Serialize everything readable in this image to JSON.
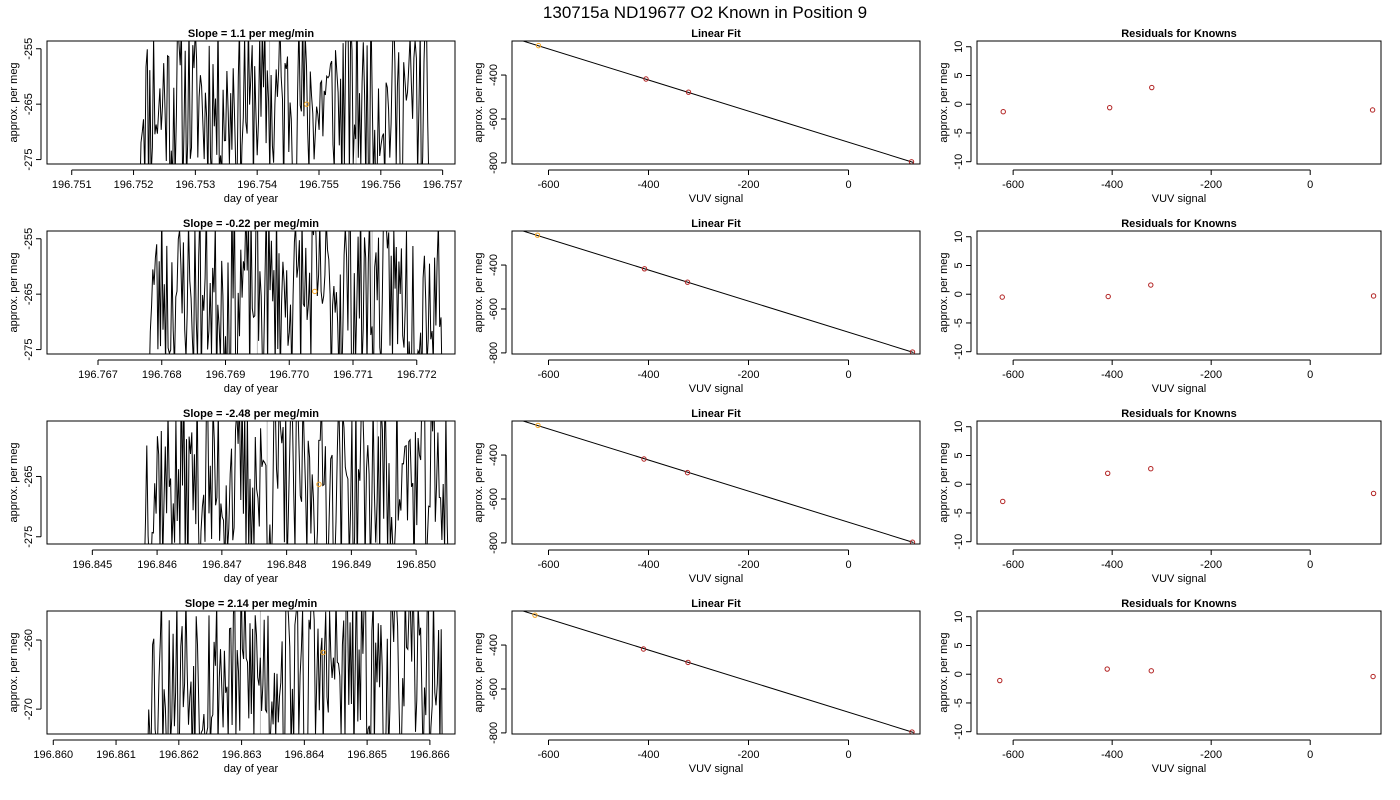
{
  "figure": {
    "title": "130715a     ND19677    O2 Known in Position  9"
  },
  "colors": {
    "trace": "#000000",
    "marker_orange": "#f5a623",
    "marker_red": "#b22222",
    "fit_line": "#000000",
    "gray_line": "#bdbdbd",
    "frame": "#000000"
  },
  "chart_data": [
    {
      "type": "line",
      "title": "Slope =  1.1  per meg/min",
      "xlabel": "day of year",
      "ylabel": "approx. per meg",
      "xlim": [
        196.7506,
        196.7572
      ],
      "ylim": [
        -275.8,
        -253.6
      ],
      "xticks": [
        196.751,
        196.752,
        196.753,
        196.754,
        196.755,
        196.756,
        196.757
      ],
      "xtick_labels": [
        "196.751",
        "196.752",
        "196.753",
        "196.754",
        "196.755",
        "196.756",
        "196.757"
      ],
      "yticks": [
        -275,
        -265,
        -255
      ],
      "ytick_labels": [
        "-275",
        "-265",
        "-255"
      ],
      "trace_x_range": [
        196.7521,
        196.7568
      ],
      "seed": 11,
      "vlines": [
        196.7542,
        196.7556
      ],
      "marker": {
        "x": 196.7548,
        "y": -265.0
      }
    },
    {
      "type": "scatter",
      "title": "Linear Fit",
      "xlabel": "VUV signal",
      "ylabel": "approx. per meg",
      "xlim": [
        -673,
        143
      ],
      "ylim": [
        -805,
        -245
      ],
      "xticks": [
        -600,
        -400,
        -200,
        0
      ],
      "xtick_labels": [
        "-600",
        "-400",
        "-200",
        "0"
      ],
      "yticks": [
        -800,
        -600,
        -400
      ],
      "ytick_labels": [
        "-800",
        "-600",
        "-400"
      ],
      "line": {
        "x": [
          -665,
          130
        ],
        "y": [
          -235,
          -798
        ]
      },
      "points": [
        {
          "x": -620,
          "y": -266,
          "color": "orange"
        },
        {
          "x": -405,
          "y": -418,
          "color": "red"
        },
        {
          "x": -320,
          "y": -478,
          "color": "red"
        },
        {
          "x": 126,
          "y": -795,
          "color": "red"
        }
      ]
    },
    {
      "type": "scatter",
      "title": "Residuals for Knowns",
      "xlabel": "VUV signal",
      "ylabel": "approx. per meg",
      "xlim": [
        -673,
        143
      ],
      "ylim": [
        -10.4,
        11
      ],
      "xticks": [
        -600,
        -400,
        -200,
        0
      ],
      "xtick_labels": [
        "-600",
        "-400",
        "-200",
        "0"
      ],
      "yticks": [
        -10,
        -5,
        0,
        5,
        10
      ],
      "ytick_labels": [
        "-10",
        "-5",
        "0",
        "5",
        "10"
      ],
      "points": [
        {
          "x": -620,
          "y": -1.3,
          "color": "red"
        },
        {
          "x": -405,
          "y": -0.6,
          "color": "red"
        },
        {
          "x": -320,
          "y": 2.9,
          "color": "red"
        },
        {
          "x": 126,
          "y": -1.0,
          "color": "red"
        }
      ]
    },
    {
      "type": "line",
      "title": "Slope =  -0.22  per meg/min",
      "xlabel": "day of year",
      "ylabel": "approx. per meg",
      "xlim": [
        196.7662,
        196.7726
      ],
      "ylim": [
        -275.8,
        -253.6
      ],
      "xticks": [
        196.767,
        196.768,
        196.769,
        196.77,
        196.771,
        196.772
      ],
      "xtick_labels": [
        "196.767",
        "196.768",
        "196.769",
        "196.770",
        "196.771",
        "196.772"
      ],
      "yticks": [
        -275,
        -265,
        -255
      ],
      "ytick_labels": [
        "-275",
        "-265",
        "-255"
      ],
      "trace_x_range": [
        196.7678,
        196.7724
      ],
      "seed": 23,
      "vlines": [
        196.7695,
        196.7713
      ],
      "marker": {
        "x": 196.7704,
        "y": -264.5
      }
    },
    {
      "type": "scatter",
      "title": "Linear Fit",
      "xlabel": "VUV signal",
      "ylabel": "approx. per meg",
      "xlim": [
        -673,
        143
      ],
      "ylim": [
        -805,
        -245
      ],
      "xticks": [
        -600,
        -400,
        -200,
        0
      ],
      "xtick_labels": [
        "-600",
        "-400",
        "-200",
        "0"
      ],
      "yticks": [
        -800,
        -600,
        -400
      ],
      "ytick_labels": [
        "-800",
        "-600",
        "-400"
      ],
      "line": {
        "x": [
          -665,
          130
        ],
        "y": [
          -235,
          -798
        ]
      },
      "points": [
        {
          "x": -622,
          "y": -264,
          "color": "orange"
        },
        {
          "x": -408,
          "y": -417,
          "color": "red"
        },
        {
          "x": -322,
          "y": -478,
          "color": "red"
        },
        {
          "x": 128,
          "y": -796,
          "color": "red"
        }
      ]
    },
    {
      "type": "scatter",
      "title": "Residuals for Knowns",
      "xlabel": "VUV signal",
      "ylabel": "approx. per meg",
      "xlim": [
        -673,
        143
      ],
      "ylim": [
        -10.4,
        11
      ],
      "xticks": [
        -600,
        -400,
        -200,
        0
      ],
      "xtick_labels": [
        "-600",
        "-400",
        "-200",
        "0"
      ],
      "yticks": [
        -10,
        -5,
        0,
        5,
        10
      ],
      "ytick_labels": [
        "-10",
        "-5",
        "0",
        "5",
        "10"
      ],
      "points": [
        {
          "x": -622,
          "y": -0.5,
          "color": "red"
        },
        {
          "x": -408,
          "y": -0.4,
          "color": "red"
        },
        {
          "x": -322,
          "y": 1.6,
          "color": "red"
        },
        {
          "x": 128,
          "y": -0.3,
          "color": "red"
        }
      ]
    },
    {
      "type": "line",
      "title": "Slope =  -2.48  per meg/min",
      "xlabel": "day of year",
      "ylabel": "approx. per meg",
      "xlim": [
        196.8443,
        196.8506
      ],
      "ylim": [
        -276.2,
        -255.8
      ],
      "xticks": [
        196.845,
        196.846,
        196.847,
        196.848,
        196.849,
        196.85
      ],
      "xtick_labels": [
        "196.845",
        "196.846",
        "196.847",
        "196.848",
        "196.849",
        "196.850"
      ],
      "yticks": [
        -275,
        -265
      ],
      "ytick_labels": [
        "-275",
        "-265"
      ],
      "trace_x_range": [
        196.8458,
        196.8505
      ],
      "seed": 37,
      "vlines": [
        196.8477,
        196.8494
      ],
      "marker": {
        "x": 196.8485,
        "y": -266.3
      }
    },
    {
      "type": "scatter",
      "title": "Linear Fit",
      "xlabel": "VUV signal",
      "ylabel": "approx. per meg",
      "xlim": [
        -673,
        143
      ],
      "ylim": [
        -805,
        -245
      ],
      "xticks": [
        -600,
        -400,
        -200,
        0
      ],
      "xtick_labels": [
        "-600",
        "-400",
        "-200",
        "0"
      ],
      "yticks": [
        -800,
        -600,
        -400
      ],
      "ytick_labels": [
        "-800",
        "-600",
        "-400"
      ],
      "line": {
        "x": [
          -665,
          130
        ],
        "y": [
          -235,
          -798
        ]
      },
      "points": [
        {
          "x": -621,
          "y": -265,
          "color": "orange"
        },
        {
          "x": -409,
          "y": -418,
          "color": "red"
        },
        {
          "x": -322,
          "y": -480,
          "color": "red"
        },
        {
          "x": 128,
          "y": -797,
          "color": "red"
        }
      ]
    },
    {
      "type": "scatter",
      "title": "Residuals for Knowns",
      "xlabel": "VUV signal",
      "ylabel": "approx. per meg",
      "xlim": [
        -673,
        143
      ],
      "ylim": [
        -10.4,
        11
      ],
      "xticks": [
        -600,
        -400,
        -200,
        0
      ],
      "xtick_labels": [
        "-600",
        "-400",
        "-200",
        "0"
      ],
      "yticks": [
        -10,
        -5,
        0,
        5,
        10
      ],
      "ytick_labels": [
        "-10",
        "-5",
        "0",
        "5",
        "10"
      ],
      "points": [
        {
          "x": -621,
          "y": -3.0,
          "color": "red"
        },
        {
          "x": -409,
          "y": 1.9,
          "color": "red"
        },
        {
          "x": -322,
          "y": 2.7,
          "color": "red"
        },
        {
          "x": 128,
          "y": -1.6,
          "color": "red"
        }
      ]
    },
    {
      "type": "line",
      "title": "Slope =  2.14  per meg/min",
      "xlabel": "day of year",
      "ylabel": "approx. per meg",
      "xlim": [
        196.8599,
        196.8664
      ],
      "ylim": [
        -273.6,
        -255.8
      ],
      "xticks": [
        196.86,
        196.861,
        196.862,
        196.863,
        196.864,
        196.865,
        196.866
      ],
      "xtick_labels": [
        "196.860",
        "196.861",
        "196.862",
        "196.863",
        "196.864",
        "196.865",
        "196.866"
      ],
      "yticks": [
        -270,
        -260
      ],
      "ytick_labels": [
        "-270",
        "-260"
      ],
      "trace_x_range": [
        196.8615,
        196.8662
      ],
      "seed": 53,
      "vlines": [
        196.8633,
        196.8651
      ],
      "marker": {
        "x": 196.8643,
        "y": -261.8
      }
    },
    {
      "type": "scatter",
      "title": "Linear Fit",
      "xlabel": "VUV signal",
      "ylabel": "approx. per meg",
      "xlim": [
        -673,
        143
      ],
      "ylim": [
        -805,
        -245
      ],
      "xticks": [
        -600,
        -400,
        -200,
        0
      ],
      "xtick_labels": [
        "-600",
        "-400",
        "-200",
        "0"
      ],
      "yticks": [
        -800,
        -600,
        -400
      ],
      "ytick_labels": [
        "-800",
        "-600",
        "-400"
      ],
      "line": {
        "x": [
          -665,
          130
        ],
        "y": [
          -235,
          -798
        ]
      },
      "points": [
        {
          "x": -627,
          "y": -264,
          "color": "orange"
        },
        {
          "x": -410,
          "y": -418,
          "color": "red"
        },
        {
          "x": -321,
          "y": -479,
          "color": "red"
        },
        {
          "x": 127,
          "y": -796,
          "color": "red"
        }
      ]
    },
    {
      "type": "scatter",
      "title": "Residuals for Knowns",
      "xlabel": "VUV signal",
      "ylabel": "approx. per meg",
      "xlim": [
        -673,
        143
      ],
      "ylim": [
        -10.4,
        11
      ],
      "xticks": [
        -600,
        -400,
        -200,
        0
      ],
      "xtick_labels": [
        "-600",
        "-400",
        "-200",
        "0"
      ],
      "yticks": [
        -10,
        -5,
        0,
        5,
        10
      ],
      "ytick_labels": [
        "-10",
        "-5",
        "0",
        "5",
        "10"
      ],
      "points": [
        {
          "x": -627,
          "y": -1.1,
          "color": "red"
        },
        {
          "x": -410,
          "y": 0.9,
          "color": "red"
        },
        {
          "x": -321,
          "y": 0.6,
          "color": "red"
        },
        {
          "x": 127,
          "y": -0.4,
          "color": "red"
        }
      ]
    }
  ]
}
